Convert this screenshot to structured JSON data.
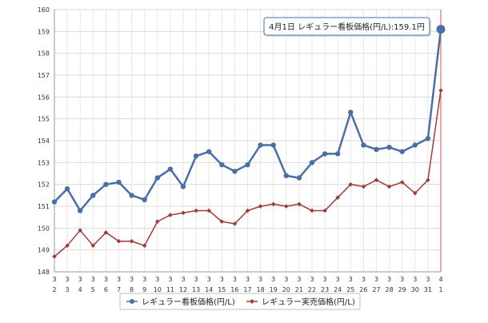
{
  "chart_data": {
    "type": "line",
    "title": "",
    "xlabel": "",
    "ylabel": "",
    "ylim": [
      148,
      160
    ],
    "yticks": [
      148,
      149,
      150,
      151,
      152,
      153,
      154,
      155,
      156,
      157,
      158,
      159,
      160
    ],
    "grid": true,
    "legend_position": "bottom",
    "categories": [
      {
        "month": "3",
        "day": "2"
      },
      {
        "month": "3",
        "day": "3"
      },
      {
        "month": "3",
        "day": "4"
      },
      {
        "month": "3",
        "day": "5"
      },
      {
        "month": "3",
        "day": "6"
      },
      {
        "month": "3",
        "day": "7"
      },
      {
        "month": "3",
        "day": "8"
      },
      {
        "month": "3",
        "day": "9"
      },
      {
        "month": "3",
        "day": "10"
      },
      {
        "month": "3",
        "day": "11"
      },
      {
        "month": "3",
        "day": "12"
      },
      {
        "month": "3",
        "day": "13"
      },
      {
        "month": "3",
        "day": "14"
      },
      {
        "month": "3",
        "day": "15"
      },
      {
        "month": "3",
        "day": "16"
      },
      {
        "month": "3",
        "day": "17"
      },
      {
        "month": "3",
        "day": "18"
      },
      {
        "month": "3",
        "day": "19"
      },
      {
        "month": "3",
        "day": "20"
      },
      {
        "month": "3",
        "day": "21"
      },
      {
        "month": "3",
        "day": "22"
      },
      {
        "month": "3",
        "day": "23"
      },
      {
        "month": "3",
        "day": "24"
      },
      {
        "month": "3",
        "day": "25"
      },
      {
        "month": "3",
        "day": "26"
      },
      {
        "month": "3",
        "day": "27"
      },
      {
        "month": "3",
        "day": "28"
      },
      {
        "month": "3",
        "day": "29"
      },
      {
        "month": "3",
        "day": "30"
      },
      {
        "month": "3",
        "day": "31"
      },
      {
        "month": "4",
        "day": "1"
      }
    ],
    "series": [
      {
        "name": "レギュラー看板価格(円/L)",
        "color": "#4a6fa5",
        "marker": "circle",
        "values": [
          151.2,
          151.8,
          150.8,
          151.5,
          152.0,
          152.1,
          151.5,
          151.3,
          152.3,
          152.7,
          151.9,
          153.3,
          153.5,
          152.9,
          152.6,
          152.9,
          153.8,
          153.8,
          152.4,
          152.3,
          153.0,
          153.4,
          153.4,
          155.3,
          153.8,
          153.6,
          153.7,
          153.5,
          153.8,
          154.1,
          159.1
        ]
      },
      {
        "name": "レギュラー実売価格(円/L)",
        "color": "#a33a3a",
        "marker": "diamond",
        "values": [
          148.7,
          149.2,
          149.9,
          149.2,
          149.8,
          149.4,
          149.4,
          149.2,
          150.3,
          150.6,
          150.7,
          150.8,
          150.8,
          150.3,
          150.2,
          150.8,
          151.0,
          151.1,
          151.0,
          151.1,
          150.8,
          150.8,
          151.4,
          152.0,
          151.9,
          152.2,
          151.9,
          152.1,
          151.6,
          152.2,
          156.3
        ]
      }
    ],
    "highlight": {
      "index": 30,
      "line_color": "#d9534f",
      "tooltip": "4月1日 レギュラー看板価格(円/L):159.1円"
    }
  }
}
